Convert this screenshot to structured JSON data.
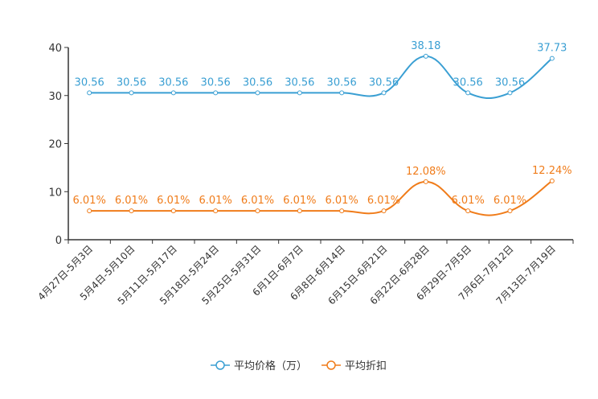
{
  "chart_data": {
    "type": "line",
    "categories": [
      "4月27日-5月3日",
      "5月4日-5月10日",
      "5月11日-5月17日",
      "5月18日-5月24日",
      "5月25日-5月31日",
      "6月1日-6月7日",
      "6月8日-6月14日",
      "6月15日-6月21日",
      "6月22日-6月28日",
      "6月29日-7月5日",
      "7月6日-7月12日",
      "7月13日-7月19日"
    ],
    "ylim": [
      0,
      40
    ],
    "yticks": [
      0,
      10,
      20,
      30,
      40
    ],
    "grid": false,
    "legend_position": "bottom-center",
    "series": [
      {
        "name": "平均价格（万）",
        "color": "#3a9fd3",
        "values": [
          30.56,
          30.56,
          30.56,
          30.56,
          30.56,
          30.56,
          30.56,
          30.56,
          38.18,
          30.56,
          30.56,
          37.73
        ],
        "labels": [
          "30.56",
          "30.56",
          "30.56",
          "30.56",
          "30.56",
          "30.56",
          "30.56",
          "30.56",
          "38.18",
          "30.56",
          "30.56",
          "37.73"
        ]
      },
      {
        "name": "平均折扣",
        "color": "#f07c1a",
        "values": [
          6.01,
          6.01,
          6.01,
          6.01,
          6.01,
          6.01,
          6.01,
          6.01,
          12.08,
          6.01,
          6.01,
          12.24
        ],
        "labels": [
          "6.01%",
          "6.01%",
          "6.01%",
          "6.01%",
          "6.01%",
          "6.01%",
          "6.01%",
          "6.01%",
          "12.08%",
          "6.01%",
          "6.01%",
          "12.24%"
        ]
      }
    ]
  }
}
